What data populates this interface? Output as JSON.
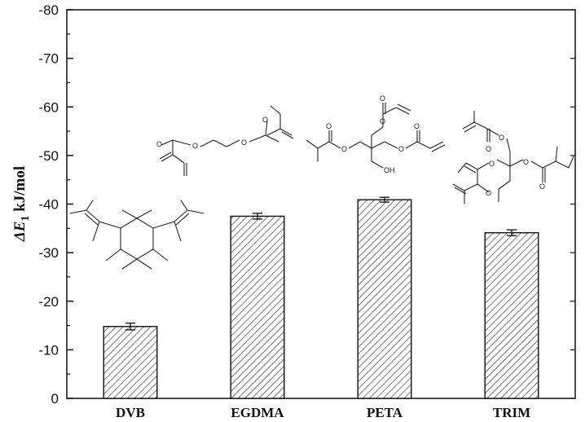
{
  "chart_data": {
    "type": "bar",
    "categories": [
      "DVB",
      "EGDMA",
      "PETA",
      "TRIM"
    ],
    "values": [
      -14.8,
      -37.5,
      -40.9,
      -34.1
    ],
    "errors": [
      0.7,
      0.6,
      0.5,
      0.6
    ],
    "ylabel": {
      "prefix": "ΔE",
      "subscript": "1",
      "suffix": " kJ/mol"
    },
    "ylim": [
      0,
      -80
    ],
    "yticks": [
      0,
      -10,
      -20,
      -30,
      -40,
      -50,
      -60,
      -70,
      -80
    ],
    "ytick_labels": [
      "0",
      "-10",
      "-20",
      "-30",
      "-40",
      "-50",
      "-60",
      "-70",
      "-80"
    ],
    "bar_fill": "hatched diagonal",
    "grid": false,
    "legend": "none",
    "annotations": {
      "atom_labels": [
        "O",
        "OH"
      ]
    }
  }
}
